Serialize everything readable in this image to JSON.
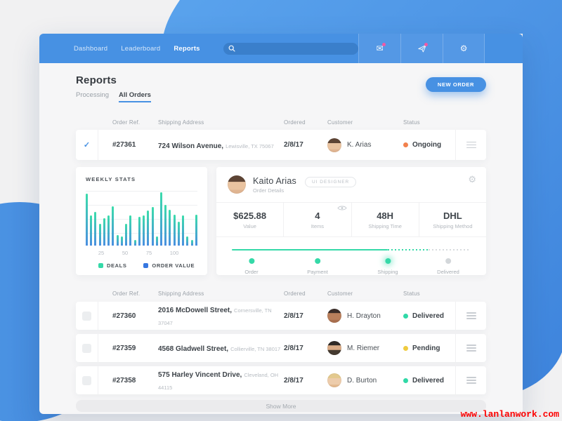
{
  "nav": {
    "links": [
      {
        "label": "Dashboard"
      },
      {
        "label": "Leaderboard"
      },
      {
        "label": "Reports"
      }
    ],
    "active_link": "Reports",
    "search": {
      "value": ""
    }
  },
  "glyphs": {
    "mail": "✉",
    "gear": "⚙",
    "check": "✓"
  },
  "page": {
    "title": "Reports",
    "tabs": [
      {
        "label": "Processing"
      },
      {
        "label": "All Orders"
      }
    ],
    "active_tab": "All Orders",
    "new_order_label": "NEW ORDER"
  },
  "table": {
    "headers": [
      "Order Ref.",
      "Shipping Address",
      "Ordered",
      "Customer",
      "Status"
    ]
  },
  "orders_top": [
    {
      "checked": true,
      "ref": "#27361",
      "street": "724 Wilson Avenue,",
      "city": "Lewisville, TX 75067",
      "date": "2/8/17",
      "customer": "K. Arias",
      "status": "Ongoing",
      "status_color": "#F2814D"
    }
  ],
  "weekly_stats": {
    "title": "WEEKLY STATS",
    "chart_data": {
      "type": "bar",
      "values": [
        95,
        55,
        62,
        40,
        50,
        55,
        72,
        19,
        17,
        40,
        55,
        10,
        52,
        55,
        64,
        71,
        17,
        98,
        74,
        66,
        57,
        43,
        55,
        17,
        10,
        57
      ],
      "ylim": [
        0,
        100
      ],
      "x_ticks": [
        "25",
        "50",
        "75",
        "100"
      ],
      "grid": true,
      "legend": [
        {
          "label": "DEALS",
          "color": "#35D9A8"
        },
        {
          "label": "ORDER VALUE",
          "color": "#3677E0"
        }
      ],
      "bar_gradient": [
        "#3BDCAB",
        "#4A8FE0"
      ]
    }
  },
  "order_details": {
    "name": "Kaito Arias",
    "role_badge": "UI DESIGNER",
    "subtitle": "Order Details",
    "stats": [
      {
        "value": "$625.88",
        "label": "Value"
      },
      {
        "value": "4",
        "label": "Items"
      },
      {
        "value": "48H",
        "label": "Shipping Time"
      },
      {
        "value": "DHL",
        "label": "Shipping Method"
      }
    ],
    "progress": {
      "steps": [
        {
          "label": "Order",
          "state": "done"
        },
        {
          "label": "Payment",
          "state": "done"
        },
        {
          "label": "Shipping",
          "state": "done"
        },
        {
          "label": "Delivered",
          "state": "pending"
        }
      ]
    }
  },
  "orders": [
    {
      "checked": false,
      "ref": "#27360",
      "street": "2016 McDowell Street,",
      "city": "Cornersville, TN 37047",
      "date": "2/8/17",
      "customer": "H. Drayton",
      "status": "Delivered",
      "status_color": "#30D9A7"
    },
    {
      "checked": false,
      "ref": "#27359",
      "street": "4568 Gladwell Street,",
      "city": "Collierville, TN 38017",
      "date": "2/8/17",
      "customer": "M. Riemer",
      "status": "Pending",
      "status_color": "#EFCB3F"
    },
    {
      "checked": false,
      "ref": "#27358",
      "street": "575 Harley Vincent Drive,",
      "city": "Cleveland, OH 44115",
      "date": "2/8/17",
      "customer": "D. Burton",
      "status": "Delivered",
      "status_color": "#30D9A7"
    }
  ],
  "show_more_label": "Show More",
  "watermark": "www.lanlanwork.com",
  "colors": {
    "accent_blue": "#4791E3",
    "teal": "#35D9A8",
    "ongoing": "#F2814D",
    "pending": "#EFCB3F",
    "delivered": "#30D9A7",
    "badge_pink": "#F259A5"
  }
}
